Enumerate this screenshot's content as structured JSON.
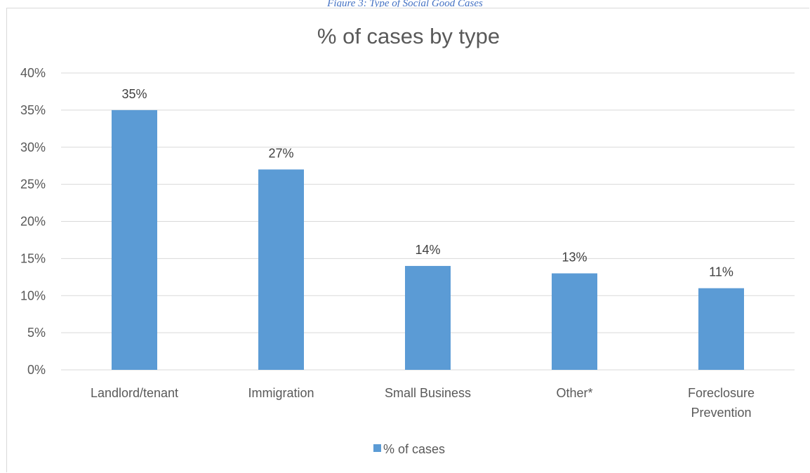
{
  "caption": "Figure 3: Type of Social Good Cases",
  "chart_data": {
    "type": "bar",
    "title": "% of cases by type",
    "categories": [
      "Landlord/tenant",
      "Immigration",
      "Small Business",
      "Other*",
      "Foreclosure Prevention"
    ],
    "category_lines": [
      [
        "Landlord/tenant"
      ],
      [
        "Immigration"
      ],
      [
        "Small Business"
      ],
      [
        "Other*"
      ],
      [
        "Foreclosure",
        "Prevention"
      ]
    ],
    "series": [
      {
        "name": "% of cases",
        "values": [
          35,
          27,
          14,
          13,
          11
        ],
        "labels": [
          "35%",
          "27%",
          "14%",
          "13%",
          "11%"
        ],
        "color": "#5b9bd5"
      }
    ],
    "ylim": [
      0,
      40
    ],
    "yticks": [
      0,
      5,
      10,
      15,
      20,
      25,
      30,
      35,
      40
    ],
    "ytick_labels": [
      "0%",
      "5%",
      "10%",
      "15%",
      "20%",
      "25%",
      "30%",
      "35%",
      "40%"
    ],
    "grid": true,
    "gridline_color": "#d9d9d9",
    "legend_position": "bottom"
  }
}
